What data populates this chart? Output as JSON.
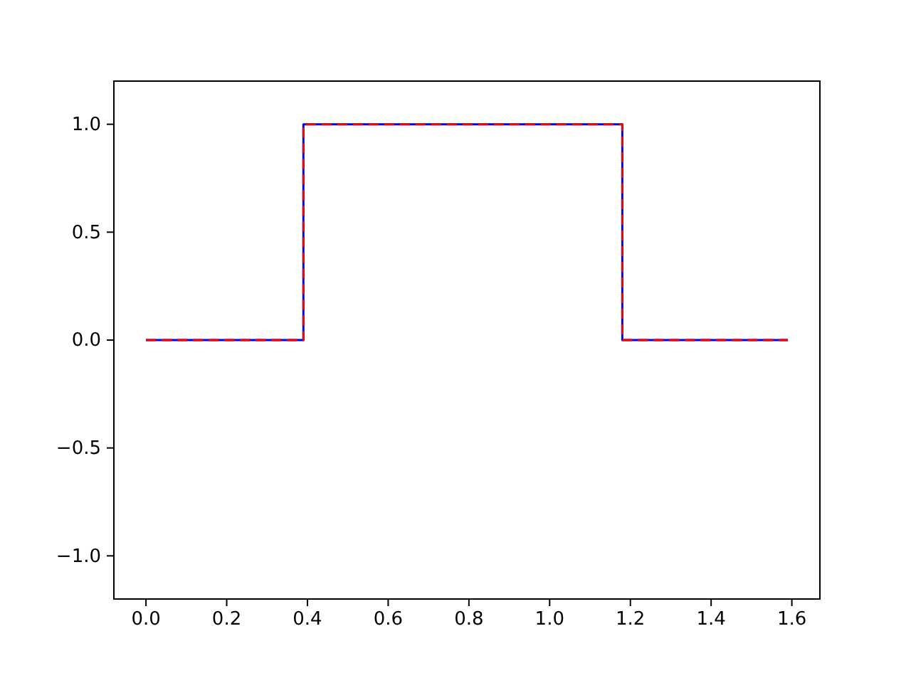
{
  "chart_data": {
    "type": "line",
    "x": [
      0,
      0.39,
      0.39,
      1.18,
      1.18,
      1.59
    ],
    "series": [
      {
        "color": "#0000ff",
        "line_style": "solid",
        "values": [
          0,
          0,
          1,
          1,
          0,
          0
        ]
      },
      {
        "color": "#ff0000",
        "line_style": "dashed",
        "values": [
          0,
          0,
          1,
          1,
          0,
          0
        ]
      }
    ],
    "xlim": [
      -0.0795,
      1.6695
    ],
    "ylim": [
      -1.2,
      1.2
    ],
    "xticks": [
      {
        "value": 0,
        "label": "0.0"
      },
      {
        "value": 0.2,
        "label": "0.2"
      },
      {
        "value": 0.4,
        "label": "0.4"
      },
      {
        "value": 0.6,
        "label": "0.6"
      },
      {
        "value": 0.8,
        "label": "0.8"
      },
      {
        "value": 1,
        "label": "1.0"
      },
      {
        "value": 1.2,
        "label": "1.2"
      },
      {
        "value": 1.4,
        "label": "1.4"
      },
      {
        "value": 1.6,
        "label": "1.6"
      }
    ],
    "yticks": [
      {
        "value": -1,
        "label": "−1.0"
      },
      {
        "value": -0.5,
        "label": "−0.5"
      },
      {
        "value": 0,
        "label": "0.0"
      },
      {
        "value": 0.5,
        "label": "0.5"
      },
      {
        "value": 1,
        "label": "1.0"
      }
    ],
    "tick_labels": "xy"
  }
}
